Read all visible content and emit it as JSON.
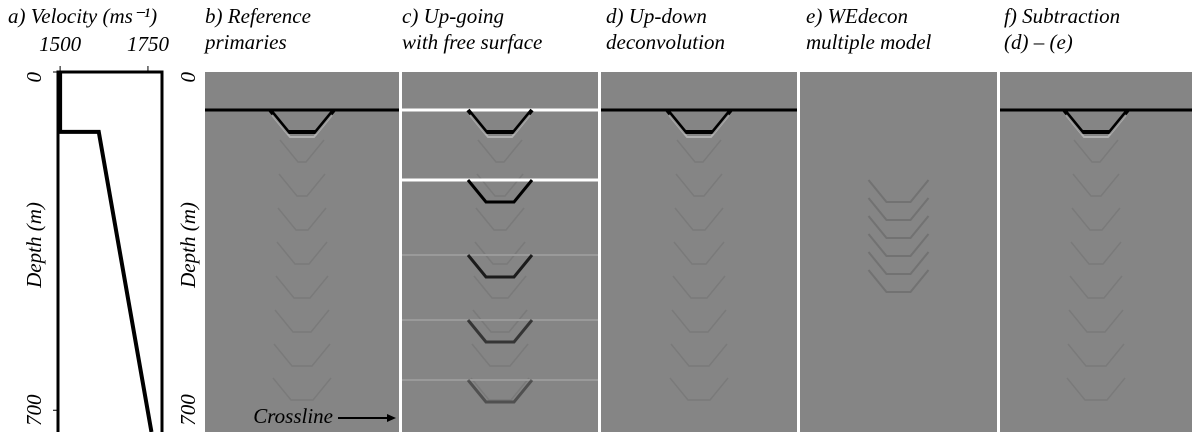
{
  "chart_data": {
    "type": "line",
    "title": "a) Velocity (ms⁻¹)",
    "x": [
      1500,
      1500,
      1610,
      1760
    ],
    "values": [
      0,
      124,
      124,
      745
    ],
    "xlim": [
      1494,
      1790
    ],
    "ylim": [
      0,
      745
    ],
    "y_inverted": true,
    "xticks": [
      1500,
      1750
    ],
    "yticks": [
      0,
      700
    ],
    "ylabel": "Depth (m)",
    "color": "#000000"
  },
  "panels": [
    {
      "title": [
        "b) Reference",
        "primaries"
      ],
      "yticks": [
        "0",
        "700"
      ],
      "ylabel": "Depth (m)",
      "annotation": "Crossline"
    },
    {
      "title": [
        "c) Up-going",
        "with free surface"
      ]
    },
    {
      "title": [
        "d) Up-down",
        "deconvolution"
      ]
    },
    {
      "title": [
        "e) WEdecon",
        "multiple model"
      ]
    },
    {
      "title": [
        "f) Subtraction",
        "(d) – (e)"
      ]
    }
  ]
}
